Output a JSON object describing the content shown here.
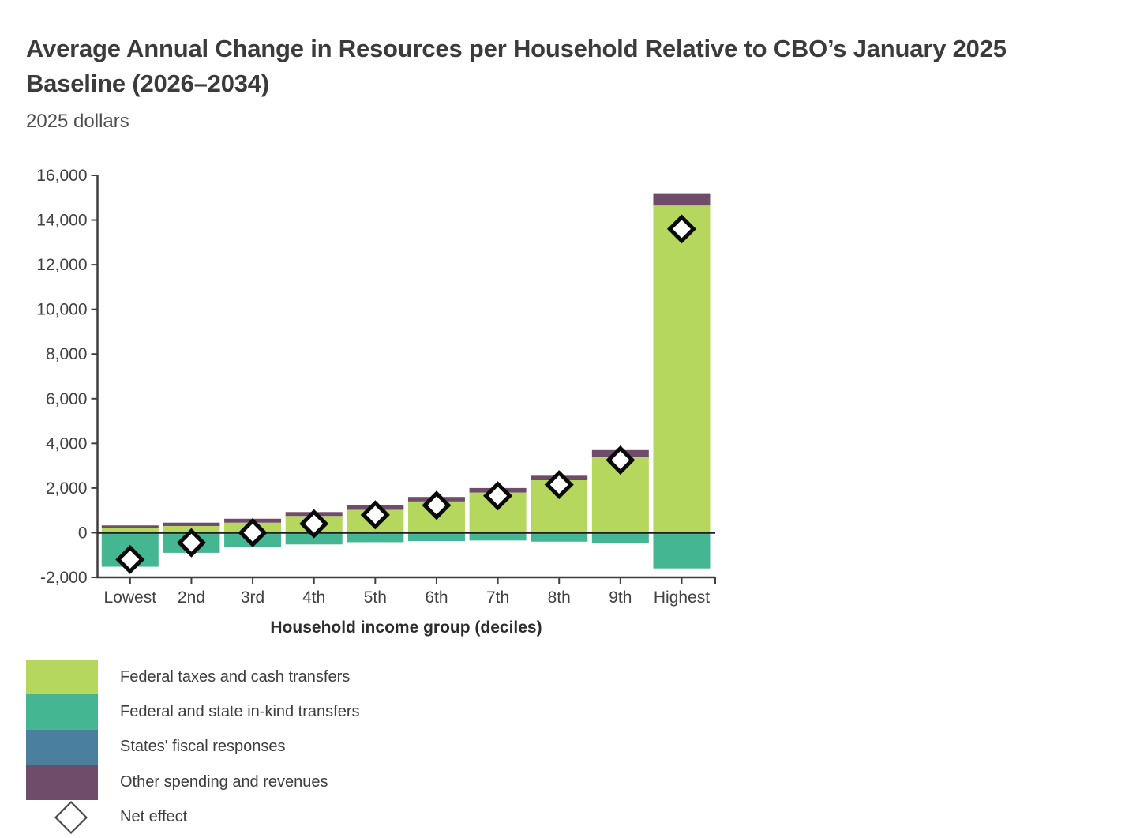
{
  "colors": {
    "axis": "#3f3f3f",
    "axis_text": "#414141",
    "zero_line": "#1f1f1f",
    "marker_fill": "#ffffff",
    "marker_stroke": "#0a0a0a",
    "legend_marker_stroke": "#4a4a4a",
    "background": "#ffffff"
  },
  "chart_data": {
    "type": "bar",
    "stacked": true,
    "title": "Average Annual Change in Resources per Household Relative to CBO’s January 2025 Baseline (2026–2034)",
    "subtitle": "2025 dollars",
    "xlabel": "Household income group (deciles)",
    "ylabel": "",
    "ylim": [
      -2000,
      16000
    ],
    "ytick_step": 2000,
    "yticklabels": [
      "-2,000",
      "0",
      "2,000",
      "4,000",
      "6,000",
      "8,000",
      "10,000",
      "12,000",
      "14,000",
      "16,000"
    ],
    "grid": false,
    "legend_position": "bottom-left",
    "categories": [
      "Lowest",
      "2nd",
      "3rd",
      "4th",
      "5th",
      "6th",
      "7th",
      "8th",
      "9th",
      "Highest"
    ],
    "series": [
      {
        "name": "Federal taxes and cash transfers",
        "type": "bar",
        "color": "#b5d75e",
        "values": [
          200,
          300,
          450,
          750,
          1025,
          1400,
          1800,
          2350,
          3400,
          14650
        ]
      },
      {
        "name": "Federal and state in-kind transfers",
        "type": "bar",
        "color": "#44b792",
        "values": [
          -1525,
          -900,
          -625,
          -525,
          -425,
          -375,
          -350,
          -400,
          -450,
          -1600
        ]
      },
      {
        "name": "States' fiscal responses",
        "type": "bar",
        "color": "#4a809e",
        "values": [
          0,
          0,
          0,
          0,
          0,
          0,
          0,
          0,
          0,
          0
        ]
      },
      {
        "name": "Other spending and revenues",
        "type": "bar",
        "color": "#6e4c6a",
        "values": [
          125,
          150,
          175,
          175,
          200,
          200,
          200,
          200,
          300,
          550
        ]
      },
      {
        "name": "Net effect",
        "type": "marker",
        "marker": "diamond",
        "values": [
          -1200,
          -450,
          0,
          400,
          800,
          1225,
          1650,
          2150,
          3250,
          13600
        ]
      }
    ]
  }
}
